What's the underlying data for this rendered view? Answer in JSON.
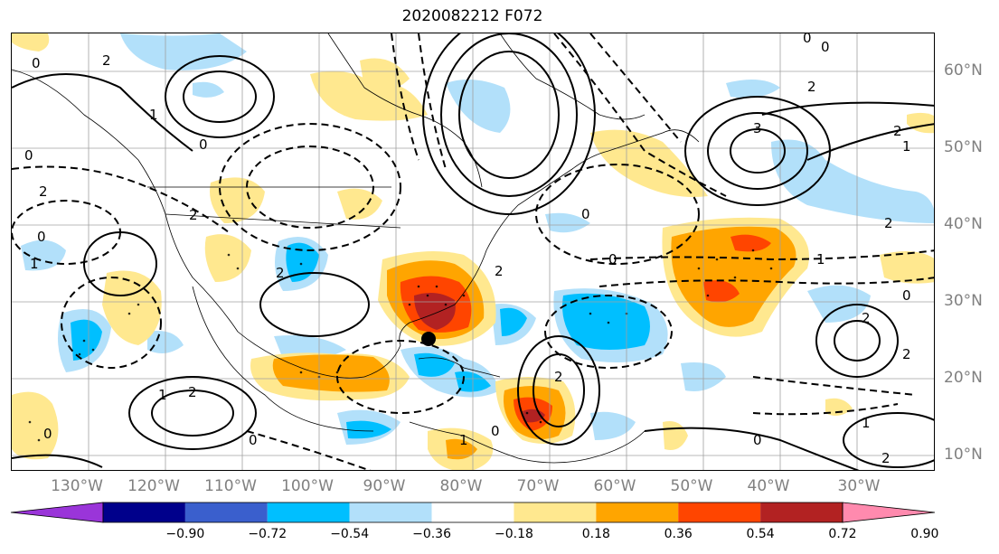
{
  "title": "2020082212 F072",
  "lon_labels": [
    "130°W",
    "120°W",
    "110°W",
    "100°W",
    "90°W",
    "80°W",
    "70°W",
    "60°W",
    "50°W",
    "40°W",
    "30°W"
  ],
  "lat_labels": [
    "60°N",
    "50°N",
    "40°N",
    "30°N",
    "20°N",
    "10°N"
  ],
  "colorbar": {
    "tick_labels": [
      "−0.90",
      "−0.72",
      "−0.54",
      "−0.36",
      "−0.18",
      "0.18",
      "0.36",
      "0.54",
      "0.72",
      "0.90"
    ],
    "colors": [
      "#9a35d9",
      "#00008b",
      "#3a5fcd",
      "#00bfff",
      "#b2e0fa",
      "#ffffff",
      "#ffe88f",
      "#ffa500",
      "#ff4500",
      "#b22222",
      "#ff8aae"
    ]
  },
  "contour_labels": [
    "0",
    "0",
    "2",
    "3",
    "2",
    "1",
    "0",
    "0",
    "0",
    "2",
    "2",
    "2",
    "1",
    "2",
    "0",
    "2",
    "1",
    "2",
    "0",
    "0",
    "1",
    "0",
    "2",
    "0",
    "2",
    "1",
    "2",
    "0",
    "0",
    "1",
    "2",
    "0",
    "1",
    "2"
  ],
  "marker": {
    "name": "storm-center",
    "color": "#000000"
  }
}
